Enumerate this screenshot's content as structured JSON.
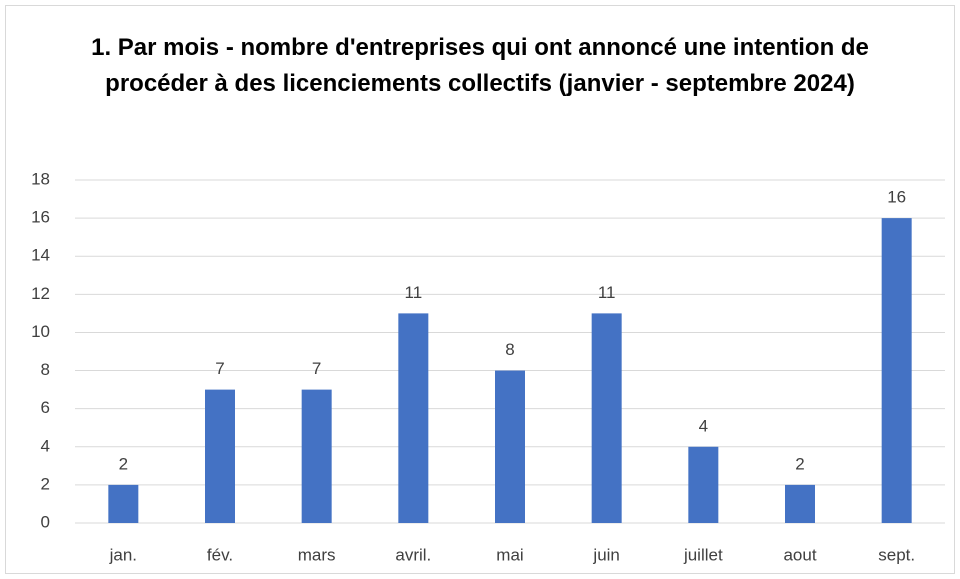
{
  "chart_data": {
    "type": "bar",
    "title": "1. Par mois - nombre d'entreprises qui ont annoncé une intention de procéder à des licenciements collectifs (janvier - septembre 2024)",
    "categories": [
      "jan.",
      "fév.",
      "mars",
      "avril.",
      "mai",
      "juin",
      "juillet",
      "aout",
      "sept."
    ],
    "values": [
      2,
      7,
      7,
      11,
      8,
      11,
      4,
      2,
      16
    ],
    "color": "#4472c4",
    "ylim": [
      0,
      18
    ],
    "yticks": [
      0,
      2,
      4,
      6,
      8,
      10,
      12,
      14,
      16,
      18
    ],
    "grid": true
  }
}
